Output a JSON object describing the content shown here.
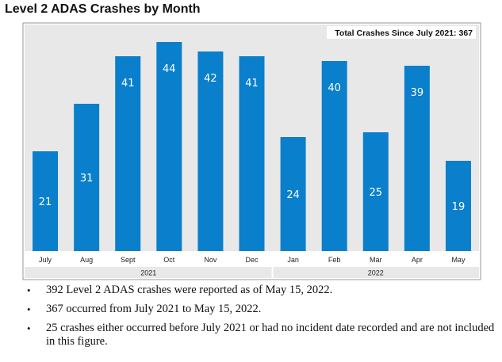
{
  "chart_data": {
    "type": "bar",
    "title": "Level 2 ADAS Crashes by Month",
    "annotation": "Total Crashes Since July 2021: 367",
    "categories": [
      "July",
      "Aug",
      "Sept",
      "Oct",
      "Nov",
      "Dec",
      "Jan",
      "Feb",
      "Mar",
      "Apr",
      "May"
    ],
    "values": [
      21,
      31,
      41,
      44,
      42,
      41,
      24,
      40,
      25,
      39,
      19
    ],
    "year_groups": [
      {
        "label": "2021",
        "months": 6
      },
      {
        "label": "2022",
        "months": 5
      }
    ],
    "xlabel": "",
    "ylabel": "",
    "ylim": [
      0,
      44
    ],
    "grid": false,
    "bar_color": "#0a7fcb",
    "plot_background": "#e8e8e8",
    "value_label_color": "#ffffff"
  },
  "notes": [
    "392 Level 2 ADAS crashes were reported as of May 15, 2022.",
    "367 occurred from July 2021 to May 15, 2022.",
    "25 crashes either occurred before July 2021 or had no incident date recorded and are not included in this figure."
  ],
  "bullet_symbol": "•"
}
